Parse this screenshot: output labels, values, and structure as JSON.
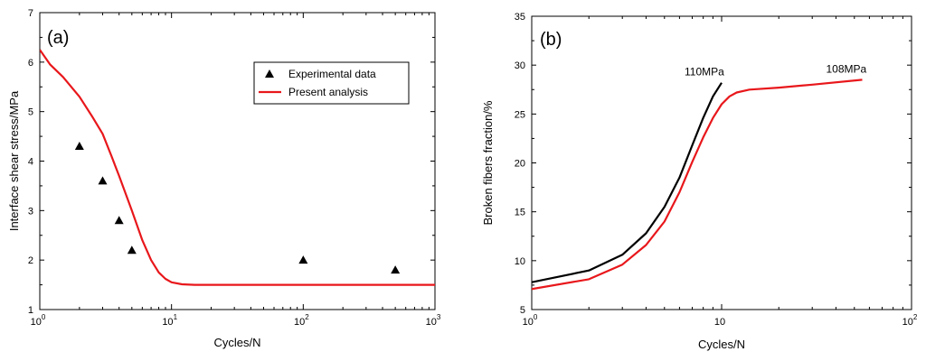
{
  "chart_data": [
    {
      "type": "line",
      "panel_label": "(a)",
      "xlabel": "Cycles/N",
      "ylabel": "Interface shear stress/MPa",
      "xscale": "log",
      "xlim": [
        1,
        1000
      ],
      "ylim": [
        1,
        7
      ],
      "y_ticks": [
        "1",
        "2",
        "3",
        "4",
        "5",
        "6",
        "7"
      ],
      "x_ticks": [
        {
          "base": "10",
          "exp": "0"
        },
        {
          "base": "10",
          "exp": "1"
        },
        {
          "base": "10",
          "exp": "2"
        },
        {
          "base": "10",
          "exp": "3"
        }
      ],
      "legend_position": "top-right",
      "series": [
        {
          "name": "Experimental data",
          "kind": "scatter",
          "marker": "triangle",
          "color": "#000000",
          "points": [
            [
              2,
              4.3
            ],
            [
              3,
              3.6
            ],
            [
              4,
              2.8
            ],
            [
              5,
              2.2
            ],
            [
              100,
              2.0
            ],
            [
              500,
              1.8
            ]
          ]
        },
        {
          "name": "Present analysis",
          "kind": "line",
          "color": "#e8171b",
          "points": [
            [
              1,
              6.25
            ],
            [
              1.2,
              5.95
            ],
            [
              1.5,
              5.7
            ],
            [
              2,
              5.3
            ],
            [
              2.5,
              4.9
            ],
            [
              3,
              4.55
            ],
            [
              3.5,
              4.1
            ],
            [
              4,
              3.7
            ],
            [
              5,
              3.0
            ],
            [
              6,
              2.4
            ],
            [
              7,
              2.0
            ],
            [
              8,
              1.75
            ],
            [
              9,
              1.62
            ],
            [
              10,
              1.55
            ],
            [
              12,
              1.51
            ],
            [
              15,
              1.5
            ],
            [
              30,
              1.5
            ],
            [
              100,
              1.5
            ],
            [
              1000,
              1.5
            ]
          ]
        }
      ]
    },
    {
      "type": "line",
      "panel_label": "(b)",
      "xlabel": "Cycles/N",
      "ylabel": "Broken fibers fraction/%",
      "xscale": "log",
      "xlim": [
        1,
        100
      ],
      "ylim": [
        5,
        35
      ],
      "y_ticks": [
        "5",
        "10",
        "15",
        "20",
        "25",
        "30",
        "35"
      ],
      "x_ticks": [
        {
          "base": "10",
          "exp": "0"
        },
        {
          "base": "10",
          "exp": ""
        },
        {
          "base": "10",
          "exp": "2"
        }
      ],
      "series": [
        {
          "name": "110MPa",
          "kind": "line",
          "color": "#000000",
          "points": [
            [
              1,
              7.8
            ],
            [
              2,
              9.0
            ],
            [
              3,
              10.6
            ],
            [
              4,
              12.8
            ],
            [
              5,
              15.5
            ],
            [
              6,
              18.5
            ],
            [
              7,
              21.8
            ],
            [
              8,
              24.6
            ],
            [
              9,
              26.8
            ],
            [
              10,
              28.2
            ]
          ]
        },
        {
          "name": "108MPa",
          "kind": "line",
          "color": "#e8171b",
          "points": [
            [
              1,
              7.1
            ],
            [
              2,
              8.1
            ],
            [
              3,
              9.6
            ],
            [
              4,
              11.6
            ],
            [
              5,
              14.0
            ],
            [
              6,
              17.0
            ],
            [
              7,
              20.1
            ],
            [
              8,
              22.6
            ],
            [
              9,
              24.6
            ],
            [
              10,
              26.0
            ],
            [
              11,
              26.8
            ],
            [
              12,
              27.2
            ],
            [
              14,
              27.5
            ],
            [
              20,
              27.7
            ],
            [
              30,
              28.0
            ],
            [
              55,
              28.5
            ]
          ]
        }
      ],
      "annotations": [
        {
          "text": "110MPa",
          "x": 10,
          "y": 28.2
        },
        {
          "text": "108MPa",
          "x": 55,
          "y": 28.5
        }
      ]
    }
  ]
}
